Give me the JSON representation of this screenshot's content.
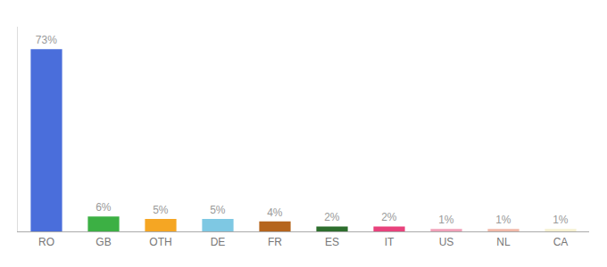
{
  "chart_data": {
    "type": "bar",
    "categories": [
      "RO",
      "GB",
      "OTH",
      "DE",
      "FR",
      "ES",
      "IT",
      "US",
      "NL",
      "CA"
    ],
    "values": [
      73,
      6,
      5,
      5,
      4,
      2,
      2,
      1,
      1,
      1
    ],
    "value_labels": [
      "73%",
      "6%",
      "5%",
      "5%",
      "4%",
      "2%",
      "2%",
      "1%",
      "1%",
      "1%"
    ],
    "colors": [
      "#4a6edb",
      "#3cb044",
      "#f5a623",
      "#7ec8e3",
      "#b5651d",
      "#2d6e2d",
      "#e8427c",
      "#f0a0b8",
      "#f0b8a8",
      "#f5f0d0"
    ],
    "ylim": [
      0,
      82
    ],
    "grid": false,
    "data_labels": true,
    "tick_labels": "x"
  }
}
